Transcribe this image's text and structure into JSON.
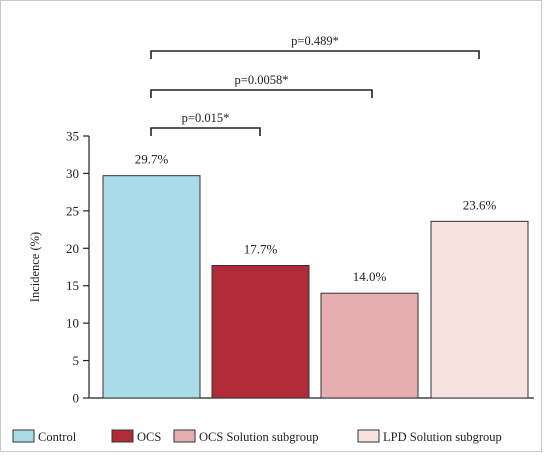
{
  "chart_data": {
    "type": "bar",
    "title": "",
    "xlabel": "",
    "ylabel": "Incidence (%)",
    "ylim": [
      0,
      35
    ],
    "yticks": [
      "0",
      "5",
      "10",
      "15",
      "20",
      "25",
      "30",
      "35"
    ],
    "grid": false,
    "legend_position": "bottom",
    "categories": [
      "Control",
      "OCS",
      "OCS Solution subgroup",
      "LPD Solution subgroup"
    ],
    "values": [
      29.7,
      17.7,
      14.0,
      23.6
    ],
    "value_labels": [
      "29.7%",
      "17.7%",
      "14.0%",
      "23.6%"
    ],
    "colors": [
      "#a9dce8",
      "#b02a37",
      "#e6aeb1",
      "#f8e2e0"
    ],
    "comparisons": [
      {
        "from": "Control",
        "to": "OCS",
        "label": "p=0.015*"
      },
      {
        "from": "Control",
        "to": "OCS Solution subgroup",
        "label": "p=0.0058*"
      },
      {
        "from": "Control",
        "to": "LPD Solution subgroup",
        "label": "p=0.489*"
      }
    ]
  }
}
